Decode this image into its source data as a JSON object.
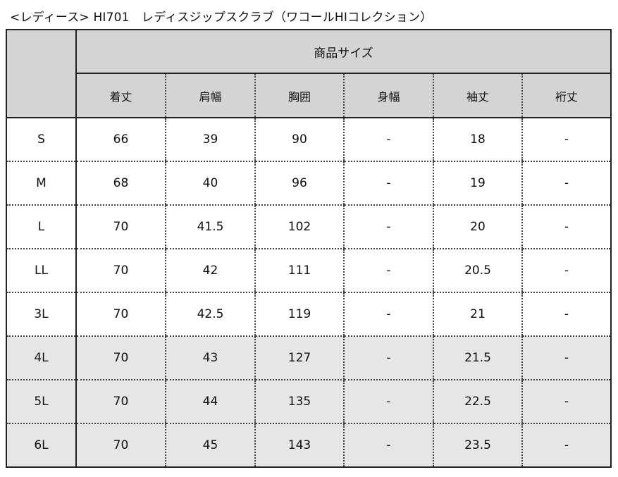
{
  "title": "<レディース> HI701　レディスジップスクラブ（ワコールHIコレクション）",
  "table": {
    "group_header": "商品サイズ",
    "columns": [
      "着丈",
      "肩幅",
      "胸囲",
      "身幅",
      "袖丈",
      "裄丈"
    ],
    "rows": [
      {
        "size": "S",
        "values": [
          "66",
          "39",
          "90",
          "-",
          "18",
          "-"
        ],
        "shaded": false
      },
      {
        "size": "M",
        "values": [
          "68",
          "40",
          "96",
          "-",
          "19",
          "-"
        ],
        "shaded": false
      },
      {
        "size": "L",
        "values": [
          "70",
          "41.5",
          "102",
          "-",
          "20",
          "-"
        ],
        "shaded": false
      },
      {
        "size": "LL",
        "values": [
          "70",
          "42",
          "111",
          "-",
          "20.5",
          "-"
        ],
        "shaded": false
      },
      {
        "size": "3L",
        "values": [
          "70",
          "42.5",
          "119",
          "-",
          "21",
          "-"
        ],
        "shaded": false
      },
      {
        "size": "4L",
        "values": [
          "70",
          "43",
          "127",
          "-",
          "21.5",
          "-"
        ],
        "shaded": true
      },
      {
        "size": "5L",
        "values": [
          "70",
          "44",
          "135",
          "-",
          "22.5",
          "-"
        ],
        "shaded": true
      },
      {
        "size": "6L",
        "values": [
          "70",
          "45",
          "143",
          "-",
          "23.5",
          "-"
        ],
        "shaded": true
      }
    ]
  },
  "colors": {
    "header_bg": "#d4d4d4",
    "shaded_row_bg": "#e6e6e6",
    "border": "#222222"
  }
}
